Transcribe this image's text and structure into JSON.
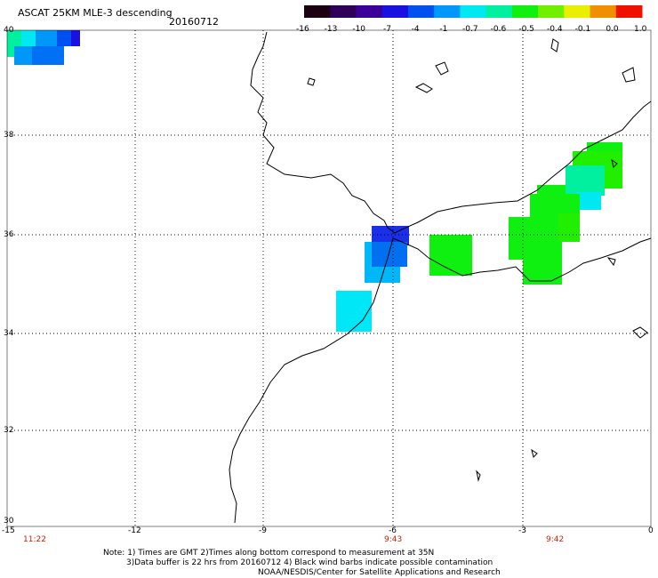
{
  "header": {
    "title": "ASCAT 25KM MLE-3 descending",
    "date": "20160712"
  },
  "colorbar": {
    "labels": [
      "-16",
      "-13",
      "-10",
      "-7",
      "-4",
      "-1",
      "-0.7",
      "-0.6",
      "-0.5",
      "-0.4",
      "-0.1",
      "0.0",
      "1.0"
    ],
    "colors": [
      "#1a0010",
      "#2e0058",
      "#3a0098",
      "#1a10e0",
      "#0050f0",
      "#0098f8",
      "#00e8f0",
      "#00f0a0",
      "#10f010",
      "#70f000",
      "#e8f000",
      "#f09000",
      "#f01000"
    ]
  },
  "axes": {
    "lat_labels": [
      "40",
      "38",
      "36",
      "34",
      "32",
      "30"
    ],
    "lon_labels": [
      "-15",
      "-12",
      "-9",
      "-6",
      "-3",
      "0"
    ]
  },
  "pass_times": [
    "11:22",
    "9:43",
    "9:42"
  ],
  "footer": {
    "note1": "Note: 1) Times are GMT 2)Times along bottom correspond to measurement at 35N",
    "note2": "3)Data buffer is 22 hrs from 20160712 4) Black wind barbs indicate possible contamination",
    "credit": "NOAA/NESDIS/Center for Satellite Applications and Research"
  }
}
